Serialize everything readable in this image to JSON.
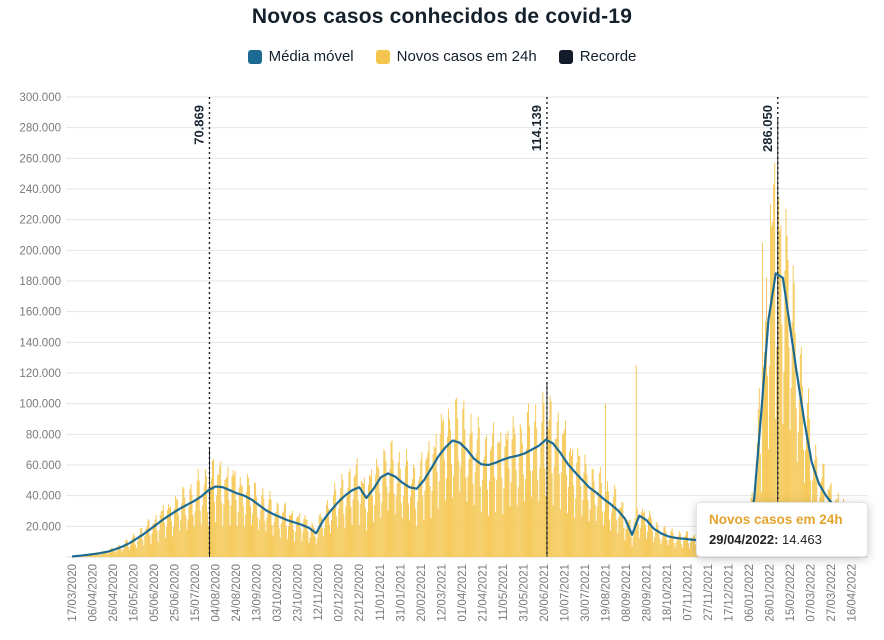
{
  "title": "Novos casos conhecidos de covid-19",
  "legend": [
    {
      "label": "Média móvel",
      "color": "#1d6b93"
    },
    {
      "label": "Novos casos em 24h",
      "color": "#f5c64f"
    },
    {
      "label": "Recorde",
      "color": "#121c2b"
    }
  ],
  "tooltip": {
    "title": "Novos casos em 24h",
    "date": "29/04/2022:",
    "value": "14.463"
  },
  "chart_data": {
    "type": "bar",
    "title": "Novos casos conhecidos de covid-19",
    "xlabel": "",
    "ylabel": "",
    "ylim": [
      0,
      300000
    ],
    "grid": "horizontal",
    "legend_position": "top",
    "y_tick_labels": [
      "20.000",
      "40.000",
      "60.000",
      "80.000",
      "100.000",
      "120.000",
      "140.000",
      "160.000",
      "180.000",
      "200.000",
      "220.000",
      "240.000",
      "260.000",
      "280.000",
      "300.000"
    ],
    "x_tick_labels": [
      "17/03/2020",
      "06/04/2020",
      "26/04/2020",
      "16/05/2020",
      "05/06/2020",
      "25/06/2020",
      "15/07/2020",
      "04/08/2020",
      "24/08/2020",
      "13/09/2020",
      "03/10/2020",
      "23/10/2020",
      "12/11/2020",
      "02/12/2020",
      "22/12/2020",
      "11/01/2021",
      "31/01/2021",
      "20/02/2021",
      "12/03/2021",
      "01/04/2021",
      "21/04/2021",
      "11/05/2021",
      "31/05/2021",
      "20/06/2021",
      "10/07/2021",
      "30/07/2021",
      "19/08/2021",
      "08/09/2021",
      "28/09/2021",
      "18/10/2021",
      "07/11/2021",
      "27/11/2021",
      "17/12/2021",
      "06/01/2022",
      "26/01/2022",
      "15/02/2022",
      "07/03/2022",
      "27/03/2022",
      "16/04/2022"
    ],
    "x_tick_interval_days": 20,
    "total_days": 774,
    "record_color": "#121c2b",
    "records": [
      {
        "label": "70.869",
        "day": 134
      },
      {
        "label": "114.139",
        "day": 463
      },
      {
        "label": "286.050",
        "day": 688
      }
    ],
    "series": [
      {
        "name": "Média móvel",
        "type": "line",
        "color": "#1d6b93",
        "weekly_values": [
          300,
          800,
          1300,
          1900,
          2600,
          3500,
          5000,
          6800,
          9000,
          12000,
          15000,
          18500,
          22000,
          25500,
          28500,
          31500,
          34000,
          36500,
          39500,
          43500,
          46000,
          45500,
          43500,
          41500,
          40000,
          37500,
          34000,
          30500,
          28000,
          26000,
          24000,
          22500,
          21000,
          19000,
          15500,
          24000,
          30000,
          35500,
          40000,
          43500,
          45500,
          38500,
          44500,
          52000,
          54500,
          52500,
          48500,
          45500,
          44500,
          50000,
          57500,
          65500,
          71500,
          76000,
          74500,
          70000,
          64000,
          60500,
          60000,
          61500,
          63500,
          65000,
          66000,
          67500,
          70000,
          72500,
          76500,
          74000,
          68000,
          61000,
          55500,
          50500,
          45500,
          42000,
          38000,
          34500,
          30500,
          25000,
          14500,
          27000,
          24000,
          18500,
          15500,
          13500,
          12500,
          12000,
          11500,
          11000,
          10500,
          10000,
          9000,
          7800,
          7000,
          8000,
          14000,
          38000,
          95000,
          155000,
          185000,
          182000,
          150000,
          118000,
          88000,
          62000,
          48000,
          40000,
          34000,
          30000,
          26000,
          21000,
          17000,
          15000
        ]
      },
      {
        "name": "Novos casos em 24h",
        "type": "bar",
        "color": "#f5c64f",
        "weekly_pattern": [
          0.5,
          0.78,
          1.08,
          1.25,
          1.32,
          1.27,
          0.8
        ],
        "spikes": [
          {
            "day": 134,
            "value": 70869
          },
          {
            "day": 463,
            "value": 114139
          },
          {
            "day": 688,
            "value": 286050
          },
          {
            "day": 520,
            "value": 100000
          },
          {
            "day": 550,
            "value": 125000
          },
          {
            "day": 673,
            "value": 205000
          },
          {
            "day": 681,
            "value": 230000
          },
          {
            "day": 685,
            "value": 257000
          }
        ]
      }
    ]
  }
}
